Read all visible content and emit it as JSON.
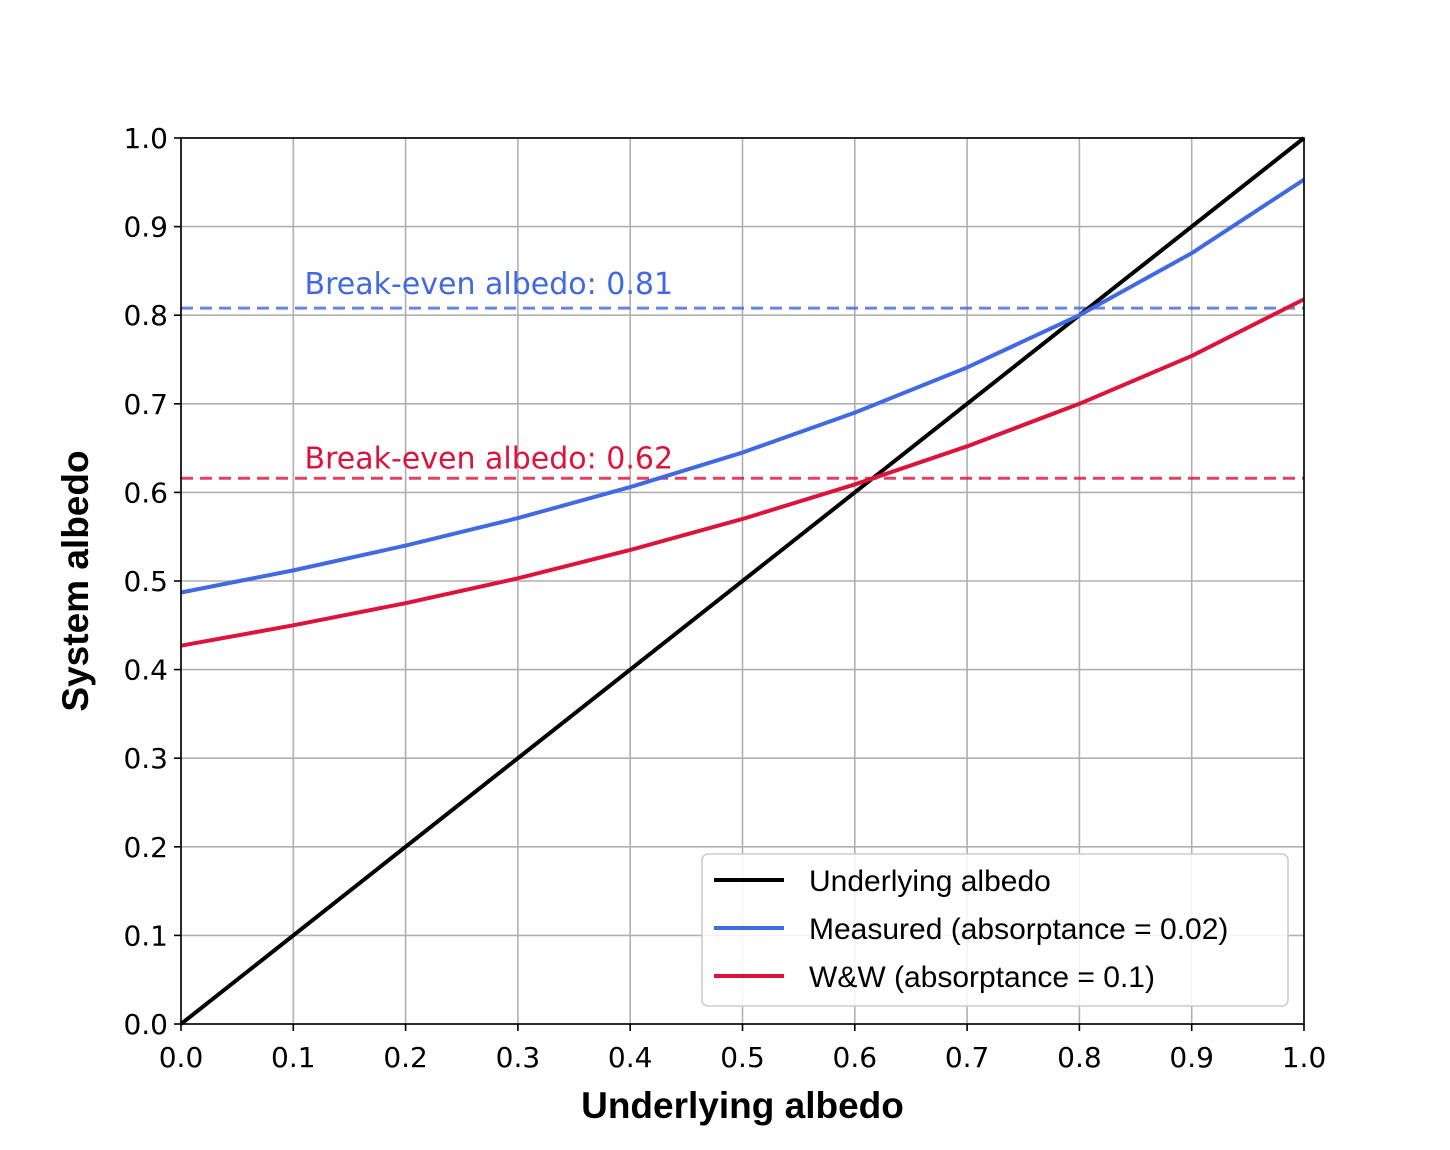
{
  "chart_data": {
    "type": "line",
    "xlabel": "Underlying albedo",
    "ylabel": "System albedo",
    "xlim": [
      0.0,
      1.0
    ],
    "ylim": [
      0.0,
      1.0
    ],
    "xticks": [
      "0.0",
      "0.1",
      "0.2",
      "0.3",
      "0.4",
      "0.5",
      "0.6",
      "0.7",
      "0.8",
      "0.9",
      "1.0"
    ],
    "yticks": [
      "0.0",
      "0.1",
      "0.2",
      "0.3",
      "0.4",
      "0.5",
      "0.6",
      "0.7",
      "0.8",
      "0.9",
      "1.0"
    ],
    "grid": true,
    "legend_position": "lower-right",
    "series": [
      {
        "name": "Underlying albedo",
        "color": "#000000",
        "x": [
          0.0,
          1.0
        ],
        "y": [
          0.0,
          1.0
        ]
      },
      {
        "name": "Measured (absorptance = 0.02)",
        "color": "#4169e1",
        "x": [
          0.0,
          0.1,
          0.2,
          0.3,
          0.4,
          0.5,
          0.6,
          0.7,
          0.8,
          0.9,
          1.0
        ],
        "y": [
          0.487,
          0.512,
          0.54,
          0.571,
          0.606,
          0.645,
          0.69,
          0.741,
          0.8,
          0.87,
          0.953
        ]
      },
      {
        "name": "W&W (absorptance = 0.1)",
        "color": "#dc143c",
        "x": [
          0.0,
          0.1,
          0.2,
          0.3,
          0.4,
          0.5,
          0.6,
          0.7,
          0.8,
          0.9,
          1.0
        ],
        "y": [
          0.427,
          0.45,
          0.475,
          0.503,
          0.535,
          0.57,
          0.609,
          0.652,
          0.7,
          0.754,
          0.818
        ]
      }
    ],
    "reference_lines": [
      {
        "y": 0.808,
        "color": "#4169e1",
        "style": "dashed"
      },
      {
        "y": 0.616,
        "color": "#dc143c",
        "style": "dashed"
      }
    ],
    "annotations": [
      {
        "text": "Break-even albedo: 0.81",
        "x": 0.11,
        "y": 0.835,
        "color": "#4169e1"
      },
      {
        "text": "Break-even albedo: 0.62",
        "x": 0.11,
        "y": 0.638,
        "color": "#dc143c"
      }
    ]
  }
}
